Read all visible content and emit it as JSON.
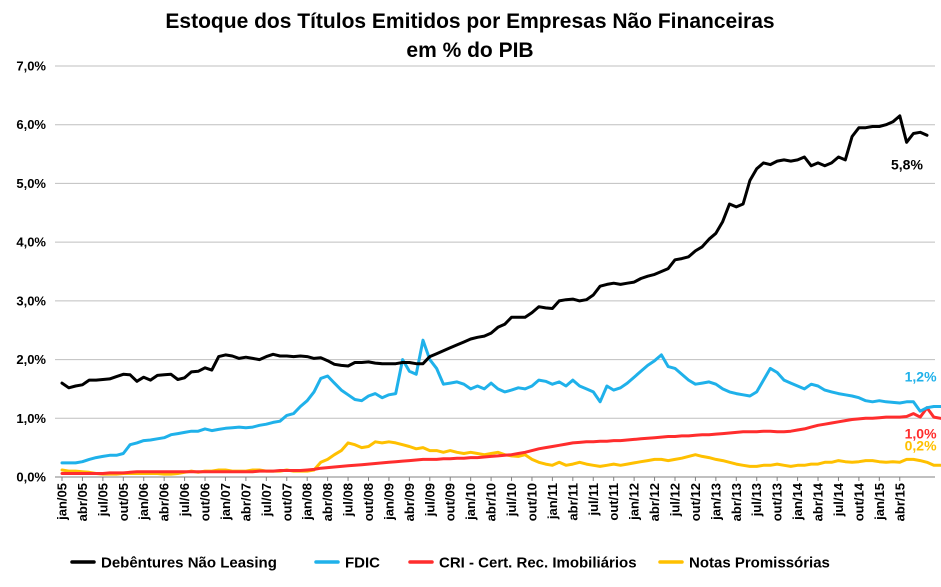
{
  "chart_data": {
    "type": "line",
    "title_lines": [
      "Estoque dos Títulos Emitidos por Empresas Não Financeiras",
      "em % do PIB"
    ],
    "xlabel": "",
    "ylabel": "",
    "ylim": [
      0,
      7
    ],
    "y_ticks": [
      "0,0%",
      "1,0%",
      "2,0%",
      "3,0%",
      "4,0%",
      "5,0%",
      "6,0%",
      "7,0%"
    ],
    "grid": "horizontal",
    "legend_position": "bottom",
    "x_start": "jan/05",
    "x_end": "abr/15",
    "x_tick_labels": [
      "jan/05",
      "abr/05",
      "jul/05",
      "out/05",
      "jan/06",
      "abr/06",
      "jul/06",
      "out/06",
      "jan/07",
      "abr/07",
      "jul/07",
      "out/07",
      "jan/08",
      "abr/08",
      "jul/08",
      "out/08",
      "jan/09",
      "abr/09",
      "jul/09",
      "out/09",
      "jan/10",
      "abr/10",
      "jul/10",
      "out/10",
      "jan/11",
      "abr/11",
      "jul/11",
      "out/11",
      "jan/12",
      "abr/12",
      "jul/12",
      "out/12",
      "jan/13",
      "abr/13",
      "jul/13",
      "out/13",
      "jan/14",
      "abr/14",
      "jul/14",
      "out/14",
      "jan/15",
      "abr/15"
    ],
    "series": [
      {
        "name": "Debêntures Não Leasing",
        "color": "#000000",
        "end_label": "5,8%",
        "end_label_color": "#000000",
        "values": [
          1.6,
          1.52,
          1.55,
          1.57,
          1.65,
          1.65,
          1.66,
          1.67,
          1.71,
          1.75,
          1.74,
          1.63,
          1.7,
          1.65,
          1.73,
          1.74,
          1.75,
          1.66,
          1.69,
          1.79,
          1.8,
          1.86,
          1.82,
          2.05,
          2.08,
          2.06,
          2.02,
          2.04,
          2.02,
          2.0,
          2.05,
          2.09,
          2.06,
          2.06,
          2.05,
          2.06,
          2.05,
          2.02,
          2.03,
          1.98,
          1.92,
          1.9,
          1.89,
          1.95,
          1.95,
          1.96,
          1.94,
          1.93,
          1.93,
          1.93,
          1.95,
          1.95,
          1.93,
          1.93,
          2.05,
          2.1,
          2.15,
          2.2,
          2.25,
          2.3,
          2.35,
          2.38,
          2.4,
          2.45,
          2.55,
          2.6,
          2.72,
          2.72,
          2.72,
          2.8,
          2.9,
          2.88,
          2.87,
          3.0,
          3.02,
          3.03,
          3.0,
          3.02,
          3.1,
          3.25,
          3.28,
          3.3,
          3.28,
          3.3,
          3.32,
          3.38,
          3.42,
          3.45,
          3.5,
          3.55,
          3.7,
          3.72,
          3.75,
          3.85,
          3.92,
          4.05,
          4.15,
          4.35,
          4.65,
          4.6,
          4.65,
          5.05,
          5.25,
          5.35,
          5.32,
          5.38,
          5.4,
          5.38,
          5.4,
          5.45,
          5.3,
          5.35,
          5.3,
          5.35,
          5.45,
          5.4,
          5.8,
          5.95,
          5.95,
          5.97,
          5.97,
          6.0,
          6.05,
          6.15,
          5.7,
          5.85,
          5.87,
          5.82
        ]
      },
      {
        "name": "FDIC",
        "color": "#1fb1ea",
        "end_label": "1,2%",
        "end_label_color": "#1fb1ea",
        "values": [
          0.24,
          0.24,
          0.24,
          0.26,
          0.3,
          0.33,
          0.35,
          0.37,
          0.37,
          0.4,
          0.55,
          0.58,
          0.62,
          0.63,
          0.65,
          0.67,
          0.72,
          0.74,
          0.76,
          0.78,
          0.78,
          0.82,
          0.79,
          0.81,
          0.83,
          0.84,
          0.85,
          0.84,
          0.85,
          0.88,
          0.9,
          0.93,
          0.95,
          1.05,
          1.08,
          1.2,
          1.3,
          1.45,
          1.68,
          1.72,
          1.6,
          1.48,
          1.4,
          1.32,
          1.3,
          1.38,
          1.42,
          1.35,
          1.4,
          1.42,
          2.0,
          1.8,
          1.75,
          2.33,
          2.0,
          1.85,
          1.58,
          1.6,
          1.62,
          1.58,
          1.5,
          1.55,
          1.5,
          1.6,
          1.5,
          1.45,
          1.48,
          1.52,
          1.5,
          1.55,
          1.65,
          1.63,
          1.58,
          1.62,
          1.55,
          1.65,
          1.55,
          1.5,
          1.45,
          1.28,
          1.55,
          1.48,
          1.52,
          1.6,
          1.7,
          1.8,
          1.9,
          1.98,
          2.08,
          1.88,
          1.85,
          1.75,
          1.65,
          1.58,
          1.6,
          1.62,
          1.58,
          1.5,
          1.45,
          1.42,
          1.4,
          1.38,
          1.45,
          1.65,
          1.85,
          1.78,
          1.65,
          1.6,
          1.55,
          1.5,
          1.58,
          1.55,
          1.48,
          1.45,
          1.42,
          1.4,
          1.38,
          1.35,
          1.3,
          1.28,
          1.3,
          1.28,
          1.27,
          1.26,
          1.28,
          1.28,
          1.12,
          1.18,
          1.2,
          1.2
        ]
      },
      {
        "name": "CRI - Cert. Rec. Imobiliários",
        "color": "#ff2d2d",
        "end_label": "1,0%",
        "end_label_color": "#ff2d2d",
        "values": [
          0.06,
          0.06,
          0.06,
          0.06,
          0.06,
          0.06,
          0.06,
          0.07,
          0.07,
          0.07,
          0.08,
          0.09,
          0.09,
          0.09,
          0.09,
          0.09,
          0.09,
          0.09,
          0.09,
          0.09,
          0.09,
          0.09,
          0.09,
          0.09,
          0.09,
          0.09,
          0.09,
          0.09,
          0.09,
          0.1,
          0.1,
          0.1,
          0.11,
          0.11,
          0.11,
          0.11,
          0.12,
          0.13,
          0.15,
          0.16,
          0.17,
          0.18,
          0.19,
          0.2,
          0.21,
          0.22,
          0.23,
          0.24,
          0.25,
          0.26,
          0.27,
          0.28,
          0.29,
          0.3,
          0.3,
          0.3,
          0.31,
          0.31,
          0.32,
          0.32,
          0.33,
          0.33,
          0.34,
          0.35,
          0.36,
          0.37,
          0.38,
          0.4,
          0.42,
          0.45,
          0.48,
          0.5,
          0.52,
          0.54,
          0.56,
          0.58,
          0.59,
          0.6,
          0.6,
          0.61,
          0.61,
          0.62,
          0.62,
          0.63,
          0.64,
          0.65,
          0.66,
          0.67,
          0.68,
          0.69,
          0.69,
          0.7,
          0.7,
          0.71,
          0.72,
          0.72,
          0.73,
          0.74,
          0.75,
          0.76,
          0.77,
          0.77,
          0.77,
          0.78,
          0.78,
          0.77,
          0.77,
          0.78,
          0.8,
          0.82,
          0.85,
          0.88,
          0.9,
          0.92,
          0.94,
          0.96,
          0.98,
          0.99,
          1.0,
          1.0,
          1.01,
          1.02,
          1.02,
          1.02,
          1.03,
          1.08,
          1.02,
          1.18,
          1.02,
          1.0
        ]
      },
      {
        "name": "Notas Promissórias",
        "color": "#ffc000",
        "end_label": "0,2%",
        "end_label_color": "#ffc000",
        "values": [
          0.12,
          0.1,
          0.1,
          0.09,
          0.08,
          0.06,
          0.05,
          0.05,
          0.05,
          0.06,
          0.06,
          0.06,
          0.06,
          0.06,
          0.06,
          0.05,
          0.05,
          0.06,
          0.08,
          0.1,
          0.08,
          0.1,
          0.1,
          0.12,
          0.12,
          0.1,
          0.1,
          0.1,
          0.12,
          0.12,
          0.1,
          0.1,
          0.1,
          0.12,
          0.1,
          0.1,
          0.1,
          0.12,
          0.25,
          0.3,
          0.38,
          0.45,
          0.58,
          0.55,
          0.5,
          0.52,
          0.6,
          0.58,
          0.6,
          0.58,
          0.55,
          0.52,
          0.48,
          0.5,
          0.45,
          0.45,
          0.42,
          0.45,
          0.42,
          0.4,
          0.42,
          0.4,
          0.38,
          0.4,
          0.42,
          0.38,
          0.36,
          0.35,
          0.38,
          0.3,
          0.25,
          0.22,
          0.2,
          0.25,
          0.2,
          0.22,
          0.25,
          0.22,
          0.2,
          0.18,
          0.2,
          0.22,
          0.2,
          0.22,
          0.24,
          0.26,
          0.28,
          0.3,
          0.3,
          0.28,
          0.3,
          0.32,
          0.35,
          0.38,
          0.35,
          0.33,
          0.3,
          0.28,
          0.25,
          0.22,
          0.2,
          0.18,
          0.18,
          0.2,
          0.2,
          0.22,
          0.2,
          0.18,
          0.2,
          0.2,
          0.22,
          0.22,
          0.25,
          0.25,
          0.28,
          0.26,
          0.25,
          0.26,
          0.28,
          0.28,
          0.26,
          0.25,
          0.26,
          0.25,
          0.3,
          0.3,
          0.28,
          0.25,
          0.2,
          0.2
        ]
      }
    ]
  }
}
